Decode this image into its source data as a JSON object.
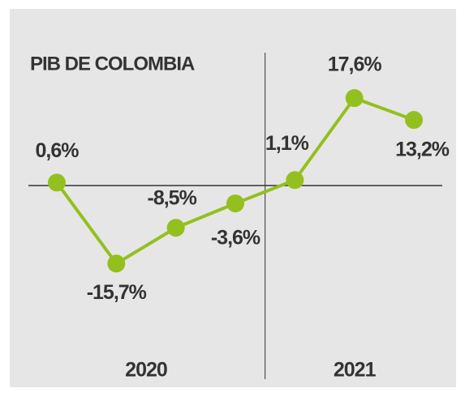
{
  "chart_data": {
    "type": "line",
    "title": "PIB DE COLOMBIA",
    "categories": [
      null,
      null,
      null,
      null,
      null,
      null,
      null
    ],
    "x_groups": [
      {
        "label": "2020",
        "categories": 4
      },
      {
        "label": "2021",
        "categories": 3
      }
    ],
    "series": [
      {
        "name": null,
        "color": "#93c01f",
        "values": [
          0.6,
          -15.7,
          -8.5,
          -3.6,
          1.1,
          17.6,
          13.2
        ],
        "value_labels": [
          "0,6%",
          "-15,7%",
          "-8,5%",
          "-3,6%",
          "1,1%",
          "17,6%",
          "13,2%"
        ]
      }
    ],
    "ylim": [
      -30,
      30
    ]
  }
}
